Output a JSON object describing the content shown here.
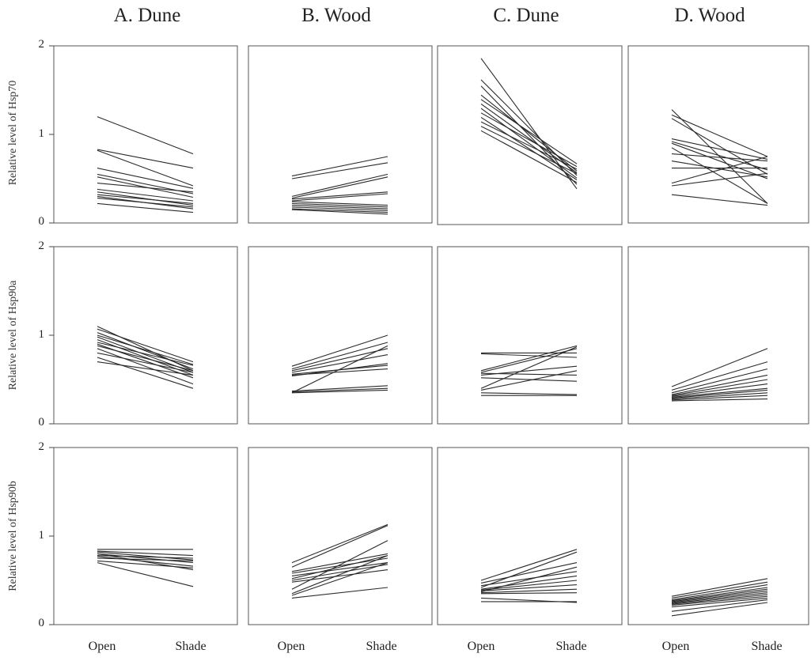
{
  "chart_data": {
    "type": "line",
    "layout": "3x4 small multiples",
    "columns": [
      "A. Dune",
      "B. Wood",
      "C. Dune",
      "D. Wood"
    ],
    "row_labels": [
      "Relative level of Hsp70",
      "Relative level of Hsp90a",
      "Relative level of Hsp90b"
    ],
    "categories": [
      "Open",
      "Shade"
    ],
    "ylim": [
      0,
      2
    ],
    "yticks": [
      "2",
      "1",
      "0"
    ],
    "grid": false,
    "line_color": "#2a2a2a",
    "panels": [
      [
        {
          "lines": [
            [
              1.2,
              0.78
            ],
            [
              0.83,
              0.62
            ],
            [
              0.82,
              0.42
            ],
            [
              0.62,
              0.39
            ],
            [
              0.55,
              0.33
            ],
            [
              0.52,
              0.29
            ],
            [
              0.45,
              0.35
            ],
            [
              0.38,
              0.25
            ],
            [
              0.35,
              0.2
            ],
            [
              0.32,
              0.22
            ],
            [
              0.3,
              0.16
            ],
            [
              0.28,
              0.18
            ],
            [
              0.22,
              0.12
            ]
          ]
        },
        {
          "lines": [
            [
              0.53,
              0.75
            ],
            [
              0.5,
              0.68
            ],
            [
              0.3,
              0.55
            ],
            [
              0.28,
              0.52
            ],
            [
              0.27,
              0.35
            ],
            [
              0.25,
              0.33
            ],
            [
              0.24,
              0.2
            ],
            [
              0.22,
              0.18
            ],
            [
              0.2,
              0.16
            ],
            [
              0.18,
              0.14
            ],
            [
              0.16,
              0.12
            ],
            [
              0.15,
              0.1
            ]
          ]
        },
        {
          "lines": [
            [
              1.86,
              0.4
            ],
            [
              1.62,
              0.55
            ],
            [
              1.55,
              0.45
            ],
            [
              1.45,
              0.6
            ],
            [
              1.4,
              0.68
            ],
            [
              1.35,
              0.58
            ],
            [
              1.3,
              0.52
            ],
            [
              1.25,
              0.65
            ],
            [
              1.2,
              0.5
            ],
            [
              1.15,
              0.62
            ],
            [
              1.1,
              0.57
            ],
            [
              1.05,
              0.47
            ]
          ]
        },
        {
          "lines": [
            [
              1.28,
              0.22
            ],
            [
              1.22,
              0.75
            ],
            [
              1.18,
              0.55
            ],
            [
              0.95,
              0.72
            ],
            [
              0.92,
              0.6
            ],
            [
              0.9,
              0.5
            ],
            [
              0.85,
              0.22
            ],
            [
              0.78,
              0.7
            ],
            [
              0.7,
              0.52
            ],
            [
              0.62,
              0.62
            ],
            [
              0.45,
              0.75
            ],
            [
              0.42,
              0.56
            ],
            [
              0.32,
              0.2
            ]
          ]
        }
      ],
      [
        {
          "lines": [
            [
              1.1,
              0.6
            ],
            [
              1.07,
              0.7
            ],
            [
              1.03,
              0.62
            ],
            [
              1.0,
              0.67
            ],
            [
              0.98,
              0.58
            ],
            [
              0.95,
              0.55
            ],
            [
              0.92,
              0.66
            ],
            [
              0.9,
              0.52
            ],
            [
              0.88,
              0.6
            ],
            [
              0.85,
              0.45
            ],
            [
              0.8,
              0.58
            ],
            [
              0.75,
              0.4
            ],
            [
              0.7,
              0.55
            ]
          ]
        },
        {
          "lines": [
            [
              0.65,
              1.0
            ],
            [
              0.62,
              0.92
            ],
            [
              0.6,
              0.85
            ],
            [
              0.58,
              0.78
            ],
            [
              0.56,
              0.66
            ],
            [
              0.55,
              0.62
            ],
            [
              0.54,
              0.68
            ],
            [
              0.37,
              0.43
            ],
            [
              0.36,
              0.4
            ],
            [
              0.35,
              0.38
            ],
            [
              0.35,
              0.88
            ]
          ]
        },
        {
          "lines": [
            [
              0.8,
              0.8
            ],
            [
              0.79,
              0.75
            ],
            [
              0.6,
              0.88
            ],
            [
              0.58,
              0.85
            ],
            [
              0.57,
              0.55
            ],
            [
              0.55,
              0.65
            ],
            [
              0.52,
              0.48
            ],
            [
              0.4,
              0.87
            ],
            [
              0.38,
              0.6
            ],
            [
              0.35,
              0.33
            ],
            [
              0.32,
              0.32
            ]
          ]
        },
        {
          "lines": [
            [
              0.42,
              0.85
            ],
            [
              0.38,
              0.7
            ],
            [
              0.35,
              0.62
            ],
            [
              0.33,
              0.55
            ],
            [
              0.32,
              0.5
            ],
            [
              0.31,
              0.45
            ],
            [
              0.3,
              0.4
            ],
            [
              0.29,
              0.38
            ],
            [
              0.28,
              0.35
            ],
            [
              0.27,
              0.32
            ],
            [
              0.26,
              0.28
            ]
          ]
        }
      ],
      [
        {
          "lines": [
            [
              0.85,
              0.85
            ],
            [
              0.83,
              0.78
            ],
            [
              0.82,
              0.73
            ],
            [
              0.8,
              0.7
            ],
            [
              0.8,
              0.62
            ],
            [
              0.78,
              0.75
            ],
            [
              0.77,
              0.66
            ],
            [
              0.75,
              0.72
            ],
            [
              0.72,
              0.64
            ],
            [
              0.7,
              0.43
            ]
          ]
        },
        {
          "lines": [
            [
              0.7,
              1.13
            ],
            [
              0.65,
              1.12
            ],
            [
              0.6,
              0.8
            ],
            [
              0.58,
              0.75
            ],
            [
              0.55,
              0.7
            ],
            [
              0.52,
              0.78
            ],
            [
              0.5,
              0.68
            ],
            [
              0.48,
              0.62
            ],
            [
              0.4,
              0.95
            ],
            [
              0.35,
              0.78
            ],
            [
              0.33,
              0.7
            ],
            [
              0.3,
              0.42
            ]
          ]
        },
        {
          "lines": [
            [
              0.5,
              0.85
            ],
            [
              0.47,
              0.7
            ],
            [
              0.44,
              0.6
            ],
            [
              0.42,
              0.82
            ],
            [
              0.4,
              0.55
            ],
            [
              0.39,
              0.5
            ],
            [
              0.38,
              0.45
            ],
            [
              0.37,
              0.65
            ],
            [
              0.36,
              0.4
            ],
            [
              0.35,
              0.36
            ],
            [
              0.3,
              0.25
            ],
            [
              0.26,
              0.26
            ]
          ]
        },
        {
          "lines": [
            [
              0.32,
              0.52
            ],
            [
              0.3,
              0.48
            ],
            [
              0.28,
              0.45
            ],
            [
              0.27,
              0.42
            ],
            [
              0.26,
              0.4
            ],
            [
              0.25,
              0.38
            ],
            [
              0.24,
              0.36
            ],
            [
              0.23,
              0.34
            ],
            [
              0.22,
              0.32
            ],
            [
              0.2,
              0.3
            ],
            [
              0.15,
              0.28
            ],
            [
              0.1,
              0.25
            ]
          ]
        }
      ]
    ]
  }
}
